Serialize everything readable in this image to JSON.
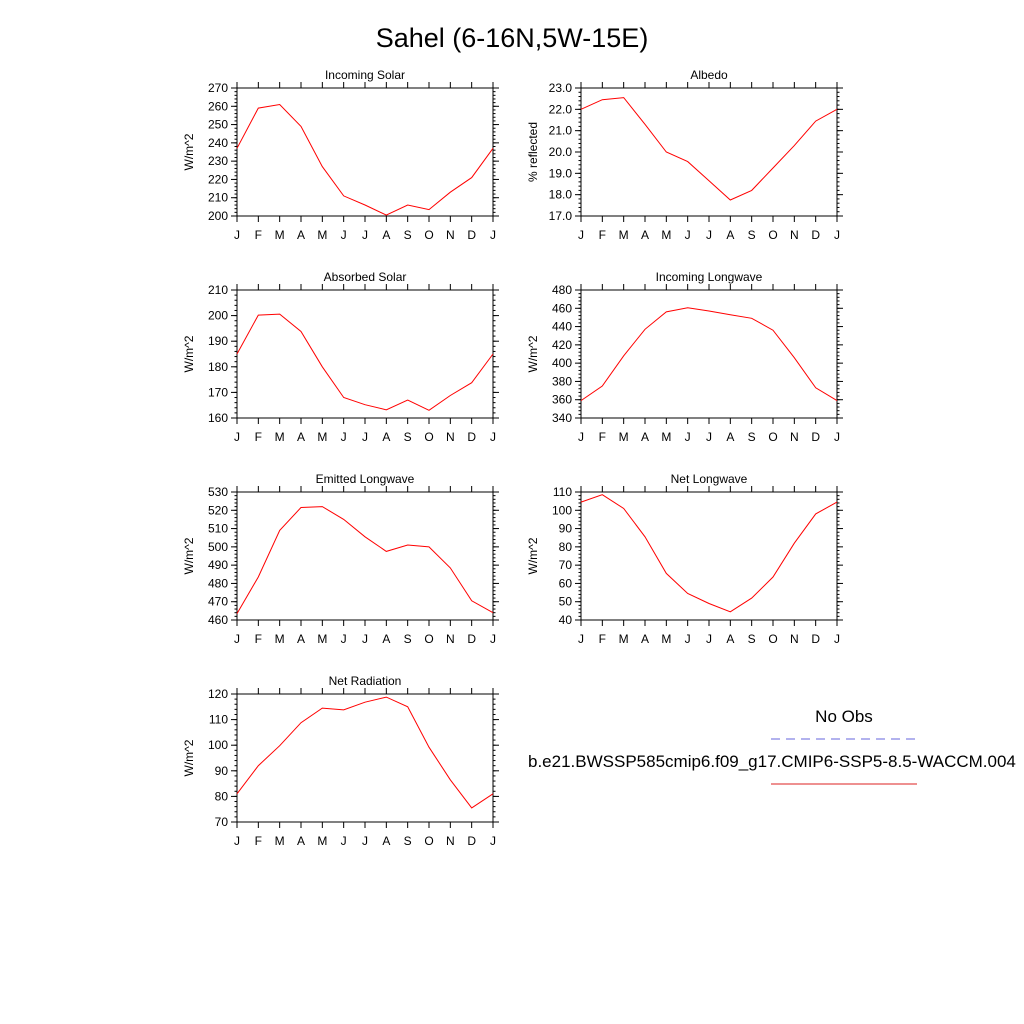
{
  "page": {
    "title": "Sahel (6-16N,5W-15E)"
  },
  "months": [
    "J",
    "F",
    "M",
    "A",
    "M",
    "J",
    "J",
    "A",
    "S",
    "O",
    "N",
    "D",
    "J"
  ],
  "legend": {
    "obs_label": "No Obs",
    "obs_color": "#6666dd",
    "model_label": "b.e21.BWSSP585cmip6.f09_g17.CMIP6-SSP5-8.5-WACCM.004",
    "model_color": "#dd2222"
  },
  "chart_data": [
    {
      "type": "line",
      "title": "Incoming Solar",
      "ylabel": "W/m^2",
      "ylim": [
        200,
        270
      ],
      "yticks": [
        200,
        210,
        220,
        230,
        240,
        250,
        260,
        270
      ],
      "ytick_labels": [
        "200",
        "210",
        "220",
        "230",
        "240",
        "250",
        "260",
        "270"
      ],
      "series": [
        {
          "color": "#ff0000",
          "values": [
            237,
            259,
            261,
            249,
            227,
            211,
            206,
            200.5,
            206,
            203.5,
            213,
            221,
            237
          ]
        }
      ]
    },
    {
      "type": "line",
      "title": "Albedo",
      "ylabel": "% reflected",
      "ylim": [
        17,
        23
      ],
      "yticks": [
        17,
        18,
        19,
        20,
        21,
        22,
        23
      ],
      "ytick_labels": [
        "17.0",
        "18.0",
        "19.0",
        "20.0",
        "21.0",
        "22.0",
        "23.0"
      ],
      "series": [
        {
          "color": "#ff0000",
          "values": [
            22.0,
            22.45,
            22.55,
            21.3,
            20.0,
            19.55,
            18.65,
            17.75,
            18.2,
            19.25,
            20.3,
            21.45,
            22.0
          ]
        }
      ]
    },
    {
      "type": "line",
      "title": "Absorbed Solar",
      "ylabel": "W/m^2",
      "ylim": [
        160,
        210
      ],
      "yticks": [
        160,
        170,
        180,
        190,
        200,
        210
      ],
      "ytick_labels": [
        "160",
        "170",
        "180",
        "190",
        "200",
        "210"
      ],
      "series": [
        {
          "color": "#ff0000",
          "values": [
            185,
            200.2,
            200.6,
            193.8,
            180,
            168,
            165.2,
            163.2,
            167,
            163,
            168.8,
            173.8,
            185
          ]
        }
      ]
    },
    {
      "type": "line",
      "title": "Incoming Longwave",
      "ylabel": "W/m^2",
      "ylim": [
        340,
        480
      ],
      "yticks": [
        340,
        360,
        380,
        400,
        420,
        440,
        460,
        480
      ],
      "ytick_labels": [
        "340",
        "360",
        "380",
        "400",
        "420",
        "440",
        "460",
        "480"
      ],
      "series": [
        {
          "color": "#ff0000",
          "values": [
            359,
            375,
            408,
            437,
            456,
            460.5,
            457,
            453,
            449,
            436,
            406,
            373,
            359
          ]
        }
      ]
    },
    {
      "type": "line",
      "title": "Emitted Longwave",
      "ylabel": "W/m^2",
      "ylim": [
        460,
        530
      ],
      "yticks": [
        460,
        470,
        480,
        490,
        500,
        510,
        520,
        530
      ],
      "ytick_labels": [
        "460",
        "470",
        "480",
        "490",
        "500",
        "510",
        "520",
        "530"
      ],
      "series": [
        {
          "color": "#ff0000",
          "values": [
            463.5,
            483.5,
            509,
            521.5,
            522,
            515,
            505.5,
            497.5,
            501,
            500,
            488.5,
            470.5,
            464
          ]
        }
      ]
    },
    {
      "type": "line",
      "title": "Net Longwave",
      "ylabel": "W/m^2",
      "ylim": [
        40,
        110
      ],
      "yticks": [
        40,
        50,
        60,
        70,
        80,
        90,
        100,
        110
      ],
      "ytick_labels": [
        "40",
        "50",
        "60",
        "70",
        "80",
        "90",
        "100",
        "110"
      ],
      "series": [
        {
          "color": "#ff0000",
          "values": [
            104.5,
            108.5,
            101,
            85.5,
            65.5,
            54.5,
            49,
            44.5,
            52,
            63.5,
            82,
            98,
            104.5
          ]
        }
      ]
    },
    {
      "type": "line",
      "title": "Net Radiation",
      "ylabel": "W/m^2",
      "ylim": [
        70,
        120
      ],
      "yticks": [
        70,
        80,
        90,
        100,
        110,
        120
      ],
      "ytick_labels": [
        "70",
        "80",
        "90",
        "100",
        "110",
        "120"
      ],
      "series": [
        {
          "color": "#ff0000",
          "values": [
            81,
            92,
            99.8,
            108.8,
            114.5,
            113.8,
            116.8,
            118.8,
            115,
            99.2,
            86.5,
            75.5,
            81
          ]
        }
      ]
    }
  ]
}
